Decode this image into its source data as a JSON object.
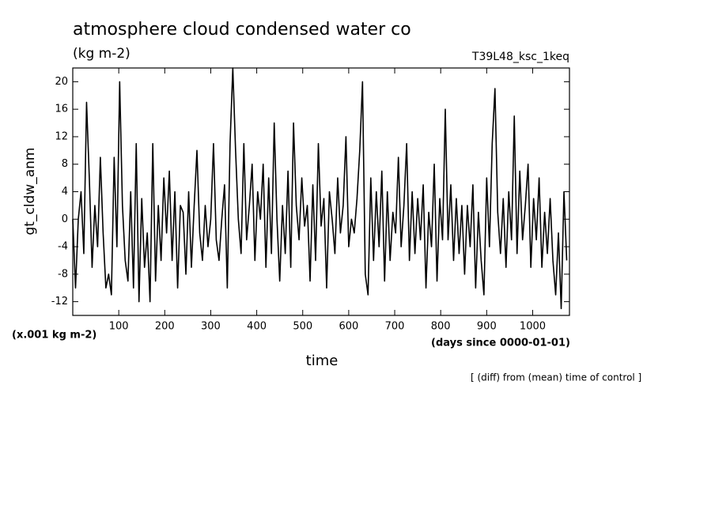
{
  "chart_data": {
    "type": "line",
    "title": "atmosphere cloud condensed water co",
    "subtitle": "(kg m-2)",
    "run_label": "T39L48_ksc_1keq",
    "y_label": "gt_cldw_anm",
    "y_units": "(x.001 kg m-2)",
    "x_label": "time",
    "x_units": "(days since 0000-01-01)",
    "note": "[ (diff) from (mean) time of control ]",
    "color": "#000000",
    "xlim": [
      0,
      1080
    ],
    "ylim": [
      -14,
      22
    ],
    "xticks": [
      100,
      200,
      300,
      400,
      500,
      600,
      700,
      800,
      900,
      1000
    ],
    "yticks": [
      -12,
      -8,
      -4,
      0,
      4,
      8,
      12,
      16,
      20
    ],
    "x": [
      0,
      6,
      12,
      18,
      24,
      30,
      36,
      42,
      48,
      54,
      60,
      66,
      72,
      78,
      84,
      90,
      96,
      102,
      108,
      114,
      120,
      126,
      132,
      138,
      144,
      150,
      156,
      162,
      168,
      174,
      180,
      186,
      192,
      198,
      204,
      210,
      216,
      222,
      228,
      234,
      240,
      246,
      252,
      258,
      264,
      270,
      276,
      282,
      288,
      294,
      300,
      306,
      312,
      318,
      324,
      330,
      336,
      342,
      348,
      354,
      360,
      366,
      372,
      378,
      384,
      390,
      396,
      402,
      408,
      414,
      420,
      426,
      432,
      438,
      444,
      450,
      456,
      462,
      468,
      474,
      480,
      486,
      492,
      498,
      504,
      510,
      516,
      522,
      528,
      534,
      540,
      546,
      552,
      558,
      564,
      570,
      576,
      582,
      588,
      594,
      600,
      606,
      612,
      618,
      624,
      630,
      636,
      642,
      648,
      654,
      660,
      666,
      672,
      678,
      684,
      690,
      696,
      702,
      708,
      714,
      720,
      726,
      732,
      738,
      744,
      750,
      756,
      762,
      768,
      774,
      780,
      786,
      792,
      798,
      804,
      810,
      816,
      822,
      828,
      834,
      840,
      846,
      852,
      858,
      864,
      870,
      876,
      882,
      888,
      894,
      900,
      906,
      912,
      918,
      924,
      930,
      936,
      942,
      948,
      954,
      960,
      966,
      972,
      978,
      984,
      990,
      996,
      1002,
      1008,
      1014,
      1020,
      1026,
      1032,
      1038,
      1044,
      1050,
      1056,
      1062,
      1068,
      1074
    ],
    "values": [
      0,
      -10,
      0,
      4,
      -5,
      17,
      6,
      -7,
      2,
      -4,
      9,
      -2,
      -10,
      -8,
      -11,
      9,
      -4,
      20,
      2,
      -6,
      -9,
      4,
      -10,
      11,
      -12,
      3,
      -7,
      -2,
      -12,
      11,
      -9,
      2,
      -6,
      6,
      -2,
      7,
      -6,
      4,
      -10,
      2,
      1,
      -8,
      4,
      -7,
      2,
      10,
      -2,
      -6,
      2,
      -4,
      0,
      11,
      -3,
      -6,
      0,
      5,
      -10,
      11,
      22,
      10,
      0,
      -5,
      11,
      -3,
      2,
      8,
      -6,
      4,
      0,
      8,
      -7,
      6,
      -5,
      14,
      0,
      -9,
      2,
      -5,
      7,
      -7,
      14,
      2,
      -3,
      6,
      -1,
      2,
      -9,
      5,
      -6,
      11,
      -1,
      3,
      -10,
      4,
      0,
      -5,
      6,
      -2,
      2,
      12,
      -4,
      0,
      -2,
      3,
      10,
      20,
      -8,
      -11,
      6,
      -6,
      4,
      -4,
      7,
      -9,
      4,
      -6,
      1,
      -2,
      9,
      -4,
      2,
      11,
      -6,
      4,
      -5,
      3,
      -3,
      5,
      -10,
      1,
      -4,
      8,
      -9,
      3,
      -3,
      16,
      -3,
      5,
      -6,
      3,
      -5,
      2,
      -8,
      2,
      -4,
      5,
      -10,
      1,
      -6,
      -11,
      6,
      -4,
      11,
      19,
      1,
      -5,
      3,
      -7,
      4,
      -3,
      15,
      -5,
      7,
      -3,
      2,
      8,
      -7,
      3,
      -3,
      6,
      -7,
      1,
      -5,
      3,
      -6,
      -11,
      -2,
      -13,
      4,
      -6
    ]
  }
}
